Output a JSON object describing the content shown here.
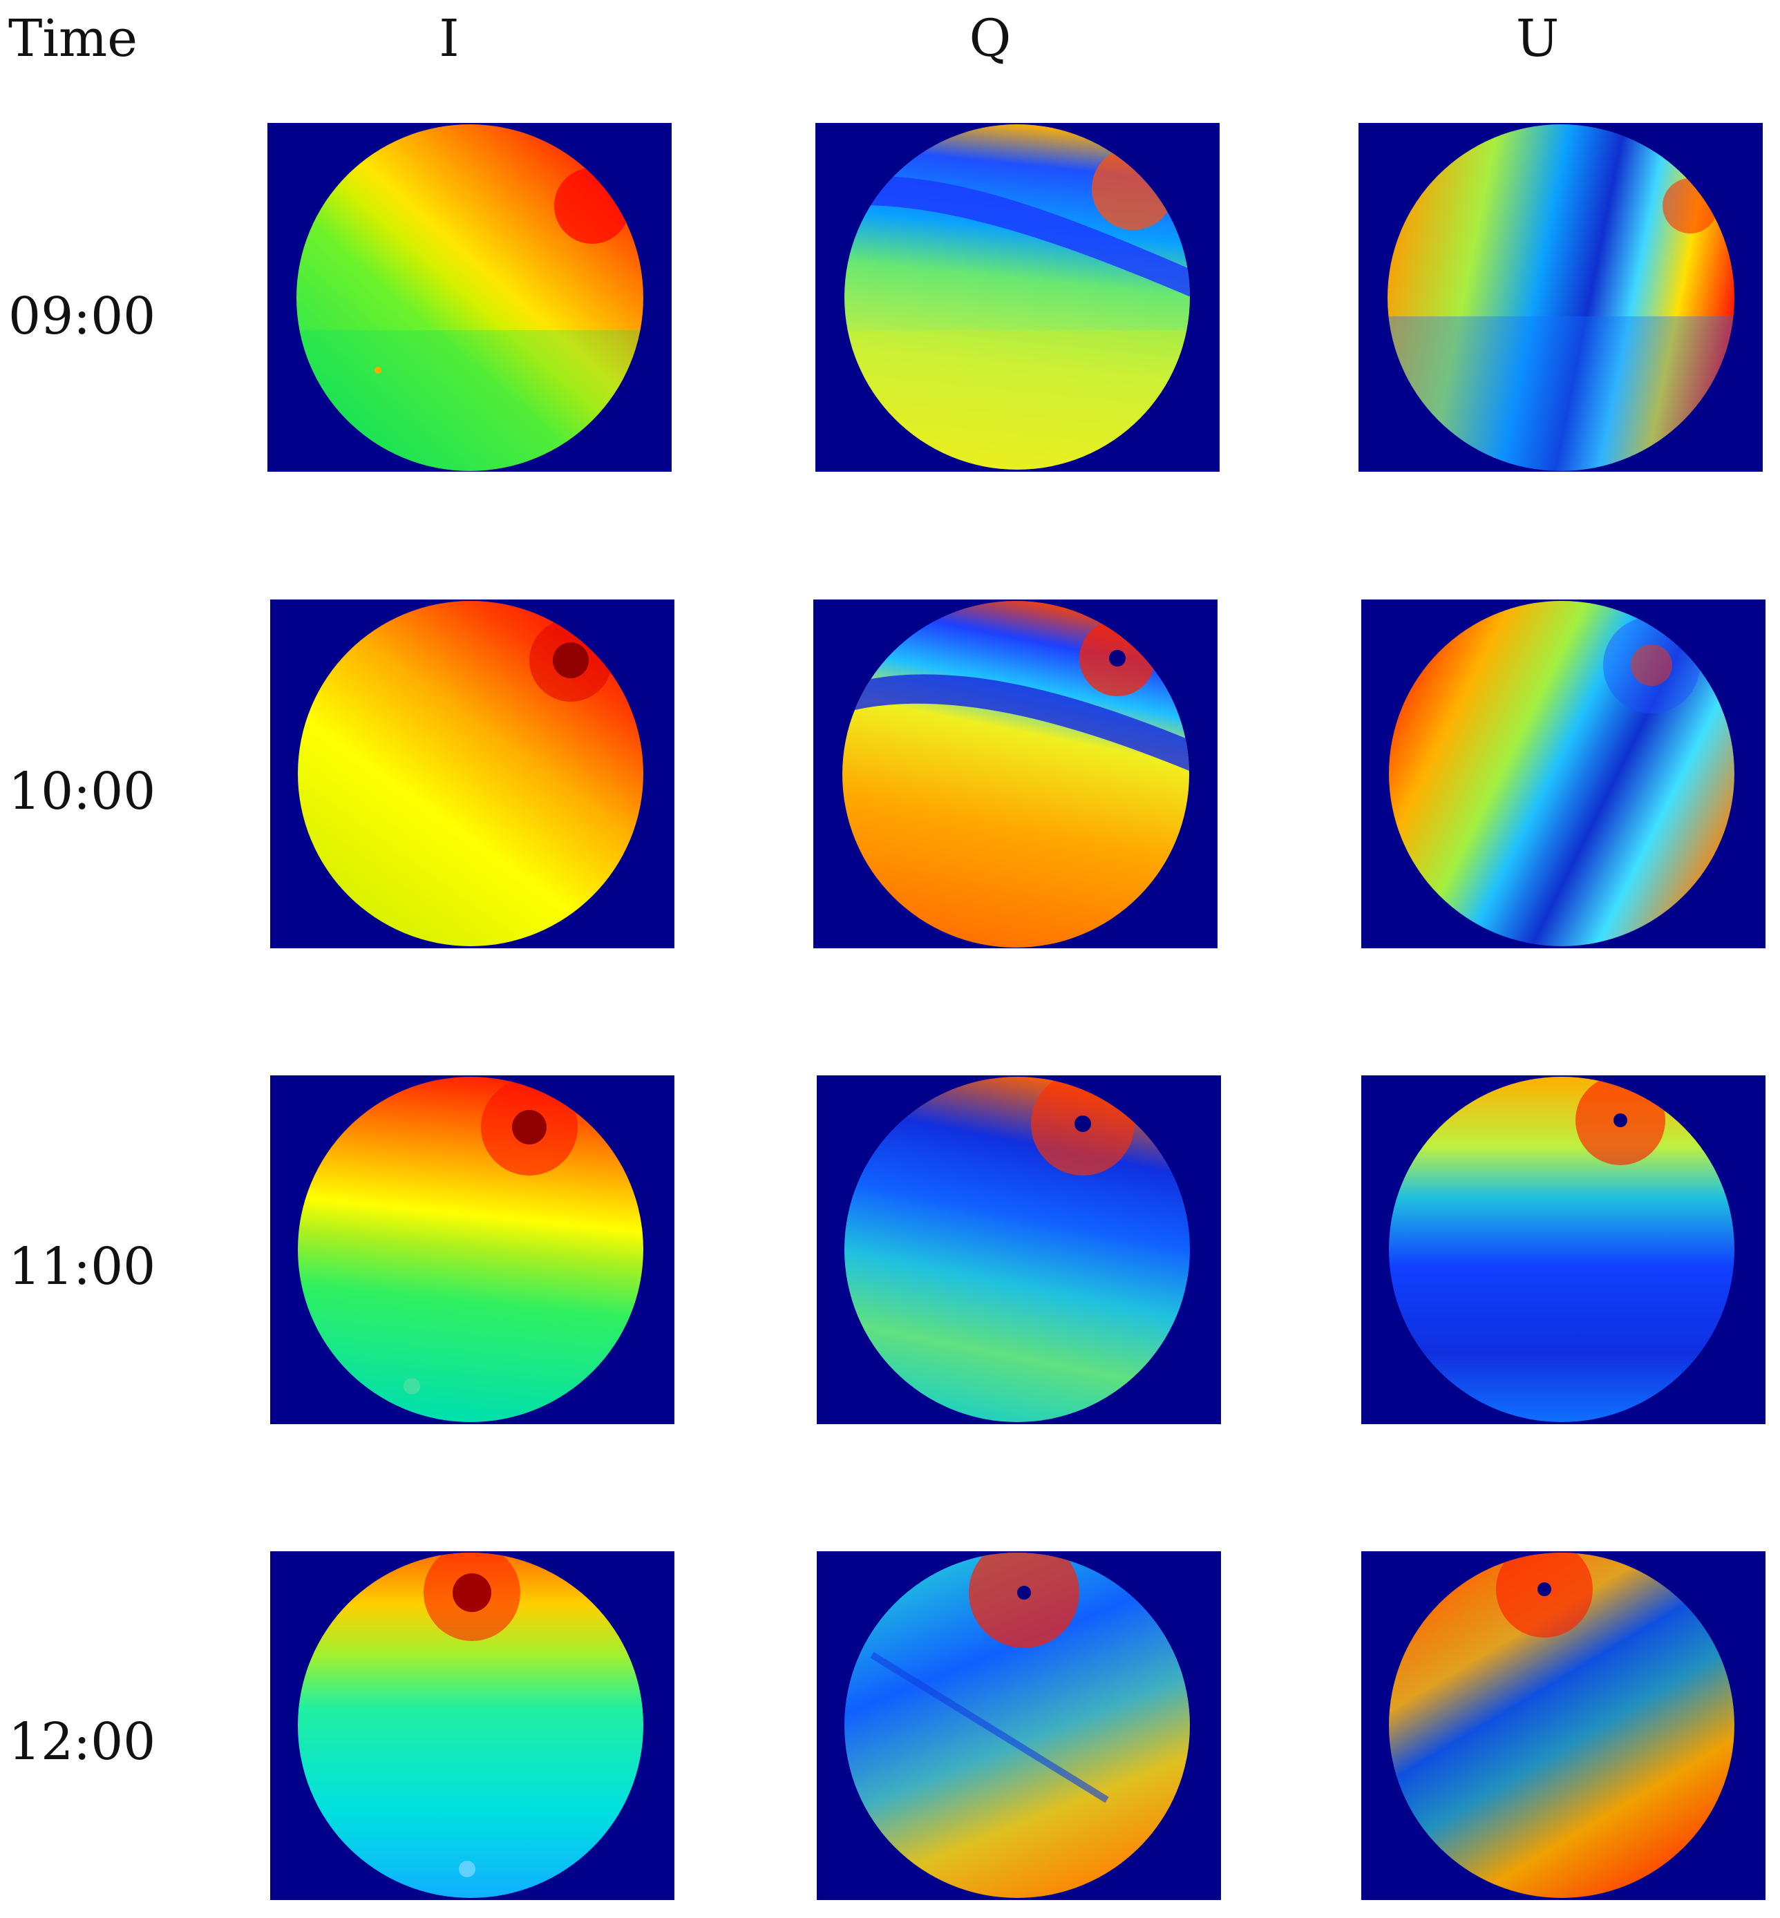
{
  "header": {
    "time": "Time",
    "cols": [
      "I",
      "Q",
      "U"
    ]
  },
  "rows": [
    {
      "time": "09:00"
    },
    {
      "time": "10:00"
    },
    {
      "time": "11:00"
    },
    {
      "time": "12:00"
    }
  ],
  "colors": {
    "background": "#00008b",
    "jet": [
      "#00008b",
      "#0000ff",
      "#00ffff",
      "#ffff00",
      "#ff0000",
      "#800000"
    ]
  }
}
